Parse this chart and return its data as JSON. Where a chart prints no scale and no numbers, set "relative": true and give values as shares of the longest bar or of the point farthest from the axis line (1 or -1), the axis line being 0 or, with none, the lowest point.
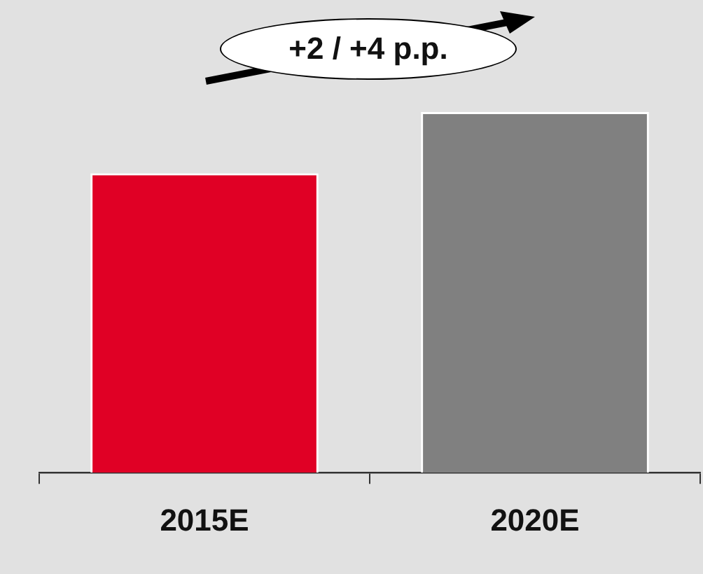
{
  "chart_data": {
    "type": "bar",
    "relative": true,
    "categories": [
      "2015E",
      "2020E"
    ],
    "values": [
      0.83,
      1
    ],
    "colors": [
      "#e00025",
      "#808080"
    ],
    "annotations": [
      "+2 / +4 p.p."
    ],
    "grid": false,
    "legend": false
  }
}
